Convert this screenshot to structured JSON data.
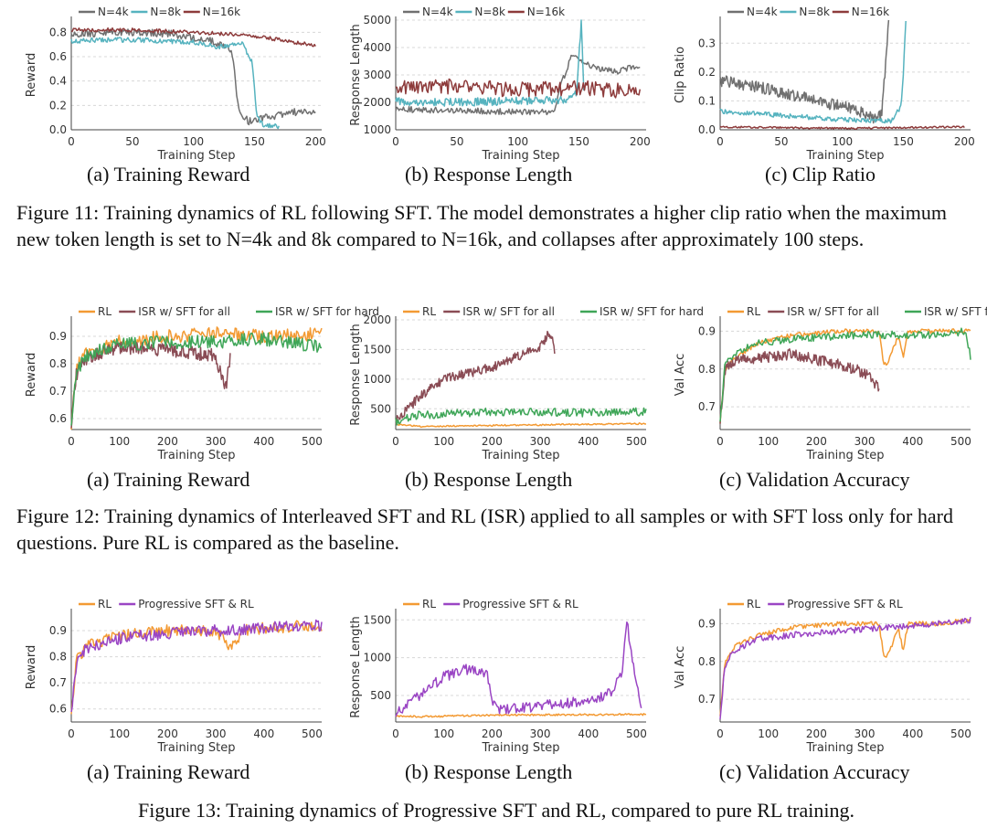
{
  "colors": {
    "N4k": "#707070",
    "N8k": "#56b3bf",
    "N16k": "#8d3b3b",
    "RL": "#f39a33",
    "ISR_all": "#8a4c55",
    "ISR_hard": "#3fa658",
    "prog": "#9a45c4",
    "grid": "#d8d8d8"
  },
  "captions": {
    "fig11": "Figure 11: Training dynamics of RL following SFT. The model demonstrates a higher clip ratio when the maximum new token length is set to N=4k and 8k compared to N=16k, and collapses after approximately 100 steps.",
    "fig12": "Figure 12: Training dynamics of Interleaved SFT and RL (ISR) applied to all samples or with SFT loss only for hard questions. Pure RL is compared as the baseline.",
    "fig13": "Figure 13: Training dynamics of Progressive SFT and RL, compared to pure RL training."
  },
  "chart_data": [
    {
      "id": "f11a",
      "type": "line",
      "title": "(a) Training Reward",
      "xlabel": "Training Step",
      "ylabel": "Reward",
      "xlim": [
        0,
        205
      ],
      "ylim": [
        0,
        0.9
      ],
      "xticks": [
        0,
        50,
        100,
        150,
        200
      ],
      "xticklabels": [
        "0",
        "50",
        "100",
        "150",
        "200"
      ],
      "yticks": [
        0,
        0.2,
        0.4,
        0.6,
        0.8
      ],
      "yticklabels": [
        "0.0",
        "0.2",
        "0.4",
        "0.6",
        "0.8"
      ],
      "legend": [
        "N=4k",
        "N=8k",
        "N=16k"
      ],
      "series": [
        {
          "name": "N=4k",
          "color_key": "N4k",
          "noise": 0.03,
          "seed": 1,
          "xs": [
            0,
            40,
            80,
            110,
            125,
            132,
            137,
            145,
            160,
            180,
            200
          ],
          "ys": [
            0.78,
            0.8,
            0.79,
            0.74,
            0.7,
            0.62,
            0.15,
            0.07,
            0.1,
            0.15,
            0.13
          ]
        },
        {
          "name": "N=8k",
          "color_key": "N8k",
          "noise": 0.02,
          "seed": 2,
          "xs": [
            0,
            50,
            100,
            120,
            140,
            148,
            152,
            158,
            170
          ],
          "ys": [
            0.73,
            0.74,
            0.72,
            0.68,
            0.71,
            0.55,
            0.1,
            0.03,
            0.03
          ]
        },
        {
          "name": "N=16k",
          "color_key": "N16k",
          "noise": 0.015,
          "seed": 3,
          "xs": [
            0,
            50,
            100,
            140,
            170,
            200
          ],
          "ys": [
            0.82,
            0.82,
            0.8,
            0.78,
            0.74,
            0.69
          ]
        }
      ]
    },
    {
      "id": "f11b",
      "type": "line",
      "title": "(b) Response Length",
      "xlabel": "Training Step",
      "ylabel": "Response Length",
      "xlim": [
        0,
        205
      ],
      "ylim": [
        1000,
        5000
      ],
      "xticks": [
        0,
        50,
        100,
        150,
        200
      ],
      "xticklabels": [
        "0",
        "50",
        "100",
        "150",
        "200"
      ],
      "yticks": [
        1000,
        2000,
        3000,
        4000,
        5000
      ],
      "yticklabels": [
        "1000",
        "2000",
        "3000",
        "4000",
        "5000"
      ],
      "legend": [
        "N=4k",
        "N=8k",
        "N=16k"
      ],
      "series": [
        {
          "name": "N=4k",
          "color_key": "N4k",
          "noise": 110,
          "seed": 4,
          "xs": [
            0,
            50,
            100,
            130,
            135,
            145,
            160,
            180,
            200
          ],
          "ys": [
            1750,
            1700,
            1650,
            1650,
            2600,
            3800,
            3300,
            3100,
            3350
          ]
        },
        {
          "name": "N=8k",
          "color_key": "N8k",
          "noise": 150,
          "seed": 5,
          "xs": [
            0,
            50,
            100,
            140,
            148,
            152,
            154
          ],
          "ys": [
            2050,
            2000,
            2050,
            2100,
            2300,
            4950,
            2300
          ]
        },
        {
          "name": "N=16k",
          "color_key": "N16k",
          "noise": 280,
          "seed": 6,
          "xs": [
            0,
            50,
            100,
            150,
            200
          ],
          "ys": [
            2500,
            2600,
            2450,
            2550,
            2350
          ]
        }
      ]
    },
    {
      "id": "f11c",
      "type": "line",
      "title": "(c) Clip Ratio",
      "xlabel": "Training Step",
      "ylabel": "Clip Ratio",
      "xlim": [
        0,
        205
      ],
      "ylim": [
        0,
        0.38
      ],
      "xticks": [
        0,
        50,
        100,
        150,
        200
      ],
      "xticklabels": [
        "0",
        "50",
        "100",
        "150",
        "200"
      ],
      "yticks": [
        0,
        0.1,
        0.2,
        0.3
      ],
      "yticklabels": [
        "0.0",
        "0.1",
        "0.2",
        "0.3"
      ],
      "legend": [
        "N=4k",
        "N=8k",
        "N=16k"
      ],
      "series": [
        {
          "name": "N=4k",
          "color_key": "N4k",
          "noise": 0.02,
          "seed": 7,
          "xs": [
            0,
            30,
            60,
            90,
            110,
            125,
            132,
            135,
            138
          ],
          "ys": [
            0.17,
            0.15,
            0.12,
            0.09,
            0.07,
            0.04,
            0.05,
            0.2,
            0.38
          ]
        },
        {
          "name": "N=8k",
          "color_key": "N8k",
          "noise": 0.008,
          "seed": 8,
          "xs": [
            0,
            50,
            100,
            140,
            148,
            150,
            152
          ],
          "ys": [
            0.065,
            0.05,
            0.035,
            0.03,
            0.08,
            0.2,
            0.38
          ]
        },
        {
          "name": "N=16k",
          "color_key": "N16k",
          "noise": 0.003,
          "seed": 9,
          "xs": [
            0,
            100,
            200
          ],
          "ys": [
            0.01,
            0.005,
            0.01
          ]
        }
      ]
    },
    {
      "id": "f12a",
      "type": "line",
      "title": "(a) Training Reward",
      "xlabel": "Training Step",
      "ylabel": "Reward",
      "xlim": [
        0,
        520
      ],
      "ylim": [
        0.56,
        0.96
      ],
      "xticks": [
        0,
        100,
        200,
        300,
        400,
        500
      ],
      "xticklabels": [
        "0",
        "100",
        "200",
        "300",
        "400",
        "500"
      ],
      "yticks": [
        0.6,
        0.7,
        0.8,
        0.9
      ],
      "yticklabels": [
        "0.6",
        "0.7",
        "0.8",
        "0.9"
      ],
      "legend": [
        "RL",
        "ISR w/ SFT for all",
        "ISR w/ SFT for hard"
      ],
      "series": [
        {
          "name": "RL",
          "color_key": "RL",
          "noise": 0.025,
          "seed": 10,
          "xs": [
            0,
            10,
            30,
            100,
            200,
            300,
            400,
            520
          ],
          "ys": [
            0.58,
            0.78,
            0.84,
            0.88,
            0.9,
            0.91,
            0.9,
            0.91
          ]
        },
        {
          "name": "ISR w/ SFT for all",
          "color_key": "ISR_all",
          "noise": 0.025,
          "seed": 11,
          "xs": [
            0,
            10,
            30,
            100,
            200,
            300,
            320,
            330
          ],
          "ys": [
            0.58,
            0.76,
            0.82,
            0.86,
            0.85,
            0.83,
            0.7,
            0.83
          ]
        },
        {
          "name": "ISR w/ SFT for hard",
          "color_key": "ISR_hard",
          "noise": 0.025,
          "seed": 12,
          "xs": [
            0,
            10,
            30,
            100,
            200,
            300,
            400,
            520
          ],
          "ys": [
            0.58,
            0.77,
            0.83,
            0.87,
            0.88,
            0.88,
            0.89,
            0.86
          ]
        }
      ]
    },
    {
      "id": "f12b",
      "type": "line",
      "title": "(b) Response Length",
      "xlabel": "Training Step",
      "ylabel": "Response Length",
      "xlim": [
        0,
        520
      ],
      "ylim": [
        150,
        2000
      ],
      "xticks": [
        0,
        100,
        200,
        300,
        400,
        500
      ],
      "xticklabels": [
        "0",
        "100",
        "200",
        "300",
        "400",
        "500"
      ],
      "yticks": [
        500,
        1000,
        1500,
        2000
      ],
      "yticklabels": [
        "500",
        "1000",
        "1500",
        "2000"
      ],
      "legend": [
        "RL",
        "ISR w/ SFT for all",
        "ISR w/ SFT for hard"
      ],
      "series": [
        {
          "name": "RL",
          "color_key": "RL",
          "noise": 12,
          "seed": 13,
          "xs": [
            0,
            50,
            200,
            520
          ],
          "ys": [
            240,
            200,
            220,
            250
          ]
        },
        {
          "name": "ISR w/ SFT for all",
          "color_key": "ISR_all",
          "noise": 80,
          "seed": 14,
          "xs": [
            0,
            50,
            100,
            200,
            300,
            320,
            330
          ],
          "ys": [
            300,
            700,
            1000,
            1200,
            1550,
            1800,
            1500
          ]
        },
        {
          "name": "ISR w/ SFT for hard",
          "color_key": "ISR_hard",
          "noise": 70,
          "seed": 15,
          "xs": [
            0,
            50,
            200,
            400,
            520
          ],
          "ys": [
            280,
            400,
            450,
            430,
            450
          ]
        }
      ]
    },
    {
      "id": "f12c",
      "type": "line",
      "title": "(c) Validation Accuracy",
      "xlabel": "Training Step",
      "ylabel": "Val Acc",
      "xlim": [
        0,
        520
      ],
      "ylim": [
        0.64,
        0.93
      ],
      "xticks": [
        0,
        100,
        200,
        300,
        400,
        500
      ],
      "xticklabels": [
        "0",
        "100",
        "200",
        "300",
        "400",
        "500"
      ],
      "yticks": [
        0.7,
        0.8,
        0.9
      ],
      "yticklabels": [
        "0.7",
        "0.8",
        "0.9"
      ],
      "legend": [
        "RL",
        "ISR w/ SFT for all",
        "ISR w/ SFT for hard"
      ],
      "series": [
        {
          "name": "RL",
          "color_key": "RL",
          "noise": 0.006,
          "seed": 16,
          "xs": [
            0,
            10,
            30,
            80,
            150,
            250,
            330,
            340,
            350,
            370,
            380,
            390,
            450,
            520
          ],
          "ys": [
            0.66,
            0.8,
            0.83,
            0.87,
            0.89,
            0.9,
            0.9,
            0.81,
            0.82,
            0.89,
            0.83,
            0.9,
            0.9,
            0.9
          ]
        },
        {
          "name": "ISR w/ SFT for all",
          "color_key": "ISR_all",
          "noise": 0.015,
          "seed": 17,
          "xs": [
            0,
            10,
            30,
            80,
            150,
            250,
            300,
            330
          ],
          "ys": [
            0.66,
            0.8,
            0.82,
            0.83,
            0.84,
            0.81,
            0.79,
            0.75
          ]
        },
        {
          "name": "ISR w/ SFT for hard",
          "color_key": "ISR_hard",
          "noise": 0.01,
          "seed": 18,
          "xs": [
            0,
            10,
            30,
            80,
            150,
            300,
            450,
            510,
            520
          ],
          "ys": [
            0.66,
            0.81,
            0.84,
            0.87,
            0.88,
            0.89,
            0.89,
            0.9,
            0.83
          ]
        }
      ]
    },
    {
      "id": "f13a",
      "type": "line",
      "title": "(a) Training Reward",
      "xlabel": "Training Step",
      "ylabel": "Reward",
      "xlim": [
        0,
        520
      ],
      "ylim": [
        0.55,
        0.97
      ],
      "xticks": [
        0,
        100,
        200,
        300,
        400,
        500
      ],
      "xticklabels": [
        "0",
        "100",
        "200",
        "300",
        "400",
        "500"
      ],
      "yticks": [
        0.6,
        0.7,
        0.8,
        0.9
      ],
      "yticklabels": [
        "0.6",
        "0.7",
        "0.8",
        "0.9"
      ],
      "legend": [
        "RL",
        "Progressive SFT & RL"
      ],
      "series": [
        {
          "name": "RL",
          "color_key": "RL",
          "noise": 0.022,
          "seed": 19,
          "xs": [
            0,
            10,
            30,
            100,
            200,
            300,
            330,
            340,
            360,
            400,
            520
          ],
          "ys": [
            0.57,
            0.78,
            0.84,
            0.88,
            0.9,
            0.9,
            0.84,
            0.86,
            0.9,
            0.91,
            0.92
          ]
        },
        {
          "name": "Progressive SFT & RL",
          "color_key": "prog",
          "noise": 0.022,
          "seed": 20,
          "xs": [
            0,
            10,
            30,
            100,
            200,
            300,
            400,
            520
          ],
          "ys": [
            0.57,
            0.77,
            0.83,
            0.87,
            0.89,
            0.9,
            0.91,
            0.92
          ]
        }
      ]
    },
    {
      "id": "f13b",
      "type": "line",
      "title": "(b) Response Length",
      "xlabel": "Training Step",
      "ylabel": "Response Length",
      "xlim": [
        0,
        520
      ],
      "ylim": [
        150,
        1600
      ],
      "xticks": [
        0,
        100,
        200,
        300,
        400,
        500
      ],
      "xticklabels": [
        "0",
        "100",
        "200",
        "300",
        "400",
        "500"
      ],
      "yticks": [
        500,
        1000,
        1500
      ],
      "yticklabels": [
        "500",
        "1000",
        "1500"
      ],
      "legend": [
        "RL",
        "Progressive SFT & RL"
      ],
      "series": [
        {
          "name": "RL",
          "color_key": "RL",
          "noise": 12,
          "seed": 21,
          "xs": [
            0,
            50,
            200,
            520
          ],
          "ys": [
            230,
            220,
            240,
            250
          ]
        },
        {
          "name": "Progressive SFT & RL",
          "color_key": "prog",
          "noise": 70,
          "seed": 22,
          "xs": [
            0,
            50,
            100,
            150,
            190,
            200,
            210,
            300,
            400,
            450,
            470,
            480,
            490,
            500,
            510
          ],
          "ys": [
            250,
            500,
            750,
            850,
            800,
            400,
            320,
            360,
            430,
            550,
            800,
            1500,
            1000,
            700,
            350
          ]
        }
      ]
    },
    {
      "id": "f13c",
      "type": "line",
      "title": "(c) Validation Accuracy",
      "xlabel": "Training Step",
      "ylabel": "Val Acc",
      "xlim": [
        0,
        520
      ],
      "ylim": [
        0.64,
        0.93
      ],
      "xticks": [
        0,
        100,
        200,
        300,
        400,
        500
      ],
      "xticklabels": [
        "0",
        "100",
        "200",
        "300",
        "400",
        "500"
      ],
      "yticks": [
        0.7,
        0.8,
        0.9
      ],
      "yticklabels": [
        "0.7",
        "0.8",
        "0.9"
      ],
      "legend": [
        "RL",
        "Progressive SFT & RL"
      ],
      "series": [
        {
          "name": "RL",
          "color_key": "RL",
          "noise": 0.006,
          "seed": 23,
          "xs": [
            0,
            10,
            30,
            80,
            150,
            250,
            330,
            340,
            350,
            370,
            380,
            390,
            450,
            520
          ],
          "ys": [
            0.66,
            0.8,
            0.84,
            0.87,
            0.89,
            0.9,
            0.9,
            0.81,
            0.82,
            0.89,
            0.83,
            0.9,
            0.9,
            0.91
          ]
        },
        {
          "name": "Progressive SFT & RL",
          "color_key": "prog",
          "noise": 0.008,
          "seed": 24,
          "xs": [
            0,
            10,
            30,
            80,
            150,
            250,
            350,
            450,
            520
          ],
          "ys": [
            0.65,
            0.79,
            0.83,
            0.86,
            0.87,
            0.88,
            0.89,
            0.9,
            0.91
          ]
        }
      ]
    }
  ]
}
